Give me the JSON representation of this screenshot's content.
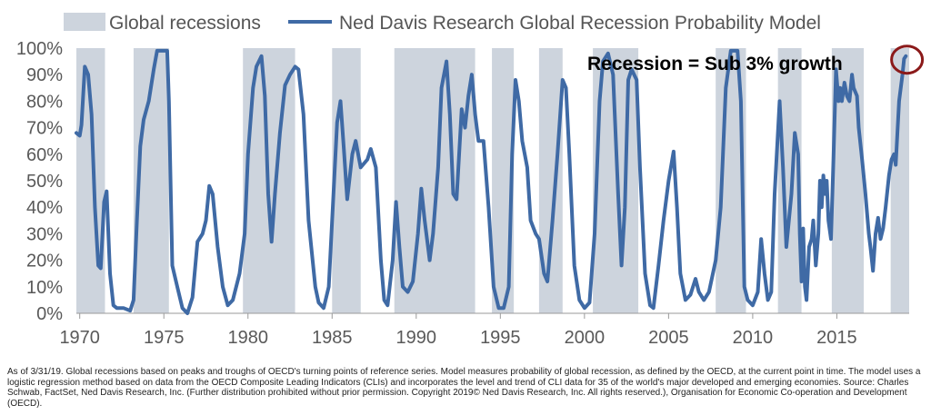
{
  "chart_data": {
    "type": "area",
    "legend": {
      "position": "top",
      "recession_label": "Global recessions",
      "series_label": "Ned Davis Research Global Recession Probability Model"
    },
    "x_ticks": [
      "1970",
      "1975",
      "1980",
      "1985",
      "1990",
      "1995",
      "2000",
      "2005",
      "2010",
      "2015"
    ],
    "y_ticks": [
      "0%",
      "10%",
      "20%",
      "30%",
      "40%",
      "50%",
      "60%",
      "70%",
      "80%",
      "90%",
      "100%"
    ],
    "xlim": [
      1969.8,
      2019.3
    ],
    "ylim": [
      0,
      100
    ],
    "grid": false,
    "colors": {
      "recession": "#cdd4dd",
      "line": "#3f6aa5",
      "annotation_circle": "#8b1a1a"
    },
    "recessions": [
      [
        1969.8,
        1971.5
      ],
      [
        1973.2,
        1975.3
      ],
      [
        1979.7,
        1982.8
      ],
      [
        1985.0,
        1986.7
      ],
      [
        1988.7,
        1993.5
      ],
      [
        1994.5,
        1995.8
      ],
      [
        1997.3,
        1998.7
      ],
      [
        2000.5,
        2003.2
      ],
      [
        2007.8,
        2009.6
      ],
      [
        2011.5,
        2012.9
      ],
      [
        2014.7,
        2016.6
      ],
      [
        2018.2,
        2019.3
      ]
    ],
    "series": [
      {
        "name": "Ned Davis Research Global Recession Probability Model",
        "points": [
          [
            1969.8,
            68
          ],
          [
            1970.0,
            67
          ],
          [
            1970.1,
            71
          ],
          [
            1970.3,
            93
          ],
          [
            1970.5,
            90
          ],
          [
            1970.7,
            75
          ],
          [
            1970.9,
            40
          ],
          [
            1971.1,
            18
          ],
          [
            1971.25,
            17
          ],
          [
            1971.45,
            42
          ],
          [
            1971.6,
            46
          ],
          [
            1971.8,
            15
          ],
          [
            1972.0,
            3
          ],
          [
            1972.2,
            2
          ],
          [
            1972.6,
            2
          ],
          [
            1973.0,
            1
          ],
          [
            1973.2,
            5
          ],
          [
            1973.4,
            35
          ],
          [
            1973.6,
            63
          ],
          [
            1973.8,
            73
          ],
          [
            1974.1,
            80
          ],
          [
            1974.4,
            92
          ],
          [
            1974.6,
            99
          ],
          [
            1975.2,
            99
          ],
          [
            1975.3,
            80
          ],
          [
            1975.5,
            18
          ],
          [
            1975.8,
            10
          ],
          [
            1976.1,
            2
          ],
          [
            1976.4,
            0
          ],
          [
            1976.7,
            6
          ],
          [
            1977.0,
            27
          ],
          [
            1977.3,
            30
          ],
          [
            1977.5,
            35
          ],
          [
            1977.7,
            48
          ],
          [
            1977.9,
            45
          ],
          [
            1978.2,
            25
          ],
          [
            1978.5,
            10
          ],
          [
            1978.8,
            3
          ],
          [
            1979.1,
            5
          ],
          [
            1979.5,
            15
          ],
          [
            1979.8,
            30
          ],
          [
            1980.0,
            60
          ],
          [
            1980.3,
            85
          ],
          [
            1980.5,
            93
          ],
          [
            1980.8,
            97
          ],
          [
            1981.0,
            82
          ],
          [
            1981.2,
            45
          ],
          [
            1981.4,
            27
          ],
          [
            1981.6,
            45
          ],
          [
            1981.9,
            68
          ],
          [
            1982.2,
            86
          ],
          [
            1982.5,
            90
          ],
          [
            1982.8,
            93
          ],
          [
            1983.0,
            92
          ],
          [
            1983.3,
            75
          ],
          [
            1983.6,
            35
          ],
          [
            1984.0,
            10
          ],
          [
            1984.2,
            4
          ],
          [
            1984.5,
            2
          ],
          [
            1984.8,
            10
          ],
          [
            1985.0,
            35
          ],
          [
            1985.3,
            72
          ],
          [
            1985.5,
            80
          ],
          [
            1985.7,
            62
          ],
          [
            1985.9,
            43
          ],
          [
            1986.2,
            60
          ],
          [
            1986.4,
            65
          ],
          [
            1986.7,
            55
          ],
          [
            1987.1,
            58
          ],
          [
            1987.3,
            62
          ],
          [
            1987.6,
            55
          ],
          [
            1987.9,
            20
          ],
          [
            1988.1,
            5
          ],
          [
            1988.3,
            3
          ],
          [
            1988.6,
            20
          ],
          [
            1988.8,
            42
          ],
          [
            1989.0,
            25
          ],
          [
            1989.2,
            10
          ],
          [
            1989.5,
            8
          ],
          [
            1989.8,
            12
          ],
          [
            1990.1,
            30
          ],
          [
            1990.3,
            47
          ],
          [
            1990.5,
            35
          ],
          [
            1990.8,
            20
          ],
          [
            1991.0,
            30
          ],
          [
            1991.3,
            55
          ],
          [
            1991.5,
            85
          ],
          [
            1991.8,
            95
          ],
          [
            1992.0,
            75
          ],
          [
            1992.2,
            45
          ],
          [
            1992.4,
            43
          ],
          [
            1992.7,
            77
          ],
          [
            1992.9,
            70
          ],
          [
            1993.1,
            82
          ],
          [
            1993.3,
            90
          ],
          [
            1993.5,
            75
          ],
          [
            1993.7,
            65
          ],
          [
            1994.0,
            65
          ],
          [
            1994.3,
            40
          ],
          [
            1994.6,
            10
          ],
          [
            1994.9,
            2
          ],
          [
            1995.2,
            2
          ],
          [
            1995.5,
            10
          ],
          [
            1995.7,
            60
          ],
          [
            1995.9,
            88
          ],
          [
            1996.1,
            80
          ],
          [
            1996.3,
            65
          ],
          [
            1996.6,
            55
          ],
          [
            1996.8,
            35
          ],
          [
            1997.1,
            30
          ],
          [
            1997.3,
            28
          ],
          [
            1997.6,
            15
          ],
          [
            1997.8,
            12
          ],
          [
            1998.1,
            35
          ],
          [
            1998.4,
            60
          ],
          [
            1998.7,
            88
          ],
          [
            1998.9,
            85
          ],
          [
            1999.1,
            60
          ],
          [
            1999.4,
            18
          ],
          [
            1999.7,
            5
          ],
          [
            2000.0,
            2
          ],
          [
            2000.3,
            4
          ],
          [
            2000.6,
            30
          ],
          [
            2000.9,
            80
          ],
          [
            2001.1,
            95
          ],
          [
            2001.4,
            98
          ],
          [
            2001.7,
            90
          ],
          [
            2002.0,
            45
          ],
          [
            2002.2,
            18
          ],
          [
            2002.4,
            40
          ],
          [
            2002.6,
            88
          ],
          [
            2002.8,
            92
          ],
          [
            2003.1,
            88
          ],
          [
            2003.3,
            55
          ],
          [
            2003.6,
            15
          ],
          [
            2003.9,
            3
          ],
          [
            2004.1,
            2
          ],
          [
            2004.4,
            18
          ],
          [
            2004.7,
            35
          ],
          [
            2005.0,
            50
          ],
          [
            2005.3,
            61
          ],
          [
            2005.5,
            40
          ],
          [
            2005.7,
            15
          ],
          [
            2006.0,
            5
          ],
          [
            2006.3,
            7
          ],
          [
            2006.6,
            13
          ],
          [
            2006.8,
            8
          ],
          [
            2007.1,
            5
          ],
          [
            2007.4,
            8
          ],
          [
            2007.8,
            20
          ],
          [
            2008.1,
            40
          ],
          [
            2008.4,
            85
          ],
          [
            2008.7,
            99
          ],
          [
            2009.1,
            99
          ],
          [
            2009.3,
            80
          ],
          [
            2009.5,
            10
          ],
          [
            2009.7,
            5
          ],
          [
            2010.0,
            3
          ],
          [
            2010.3,
            8
          ],
          [
            2010.5,
            28
          ],
          [
            2010.7,
            15
          ],
          [
            2010.9,
            5
          ],
          [
            2011.1,
            8
          ],
          [
            2011.3,
            45
          ],
          [
            2011.6,
            80
          ],
          [
            2011.8,
            55
          ],
          [
            2012.0,
            25
          ],
          [
            2012.3,
            45
          ],
          [
            2012.5,
            68
          ],
          [
            2012.7,
            60
          ],
          [
            2012.8,
            30
          ],
          [
            2012.9,
            12
          ],
          [
            2013.0,
            32
          ],
          [
            2013.1,
            10
          ],
          [
            2013.2,
            5
          ],
          [
            2013.35,
            25
          ],
          [
            2013.5,
            28
          ],
          [
            2013.6,
            35
          ],
          [
            2013.75,
            18
          ],
          [
            2013.9,
            30
          ],
          [
            2014.0,
            50
          ],
          [
            2014.1,
            40
          ],
          [
            2014.2,
            52
          ],
          [
            2014.3,
            45
          ],
          [
            2014.4,
            50
          ],
          [
            2014.5,
            35
          ],
          [
            2014.65,
            28
          ],
          [
            2014.8,
            58
          ],
          [
            2014.95,
            92
          ],
          [
            2015.1,
            80
          ],
          [
            2015.2,
            85
          ],
          [
            2015.3,
            80
          ],
          [
            2015.45,
            87
          ],
          [
            2015.6,
            82
          ],
          [
            2015.75,
            80
          ],
          [
            2015.9,
            90
          ],
          [
            2016.0,
            85
          ],
          [
            2016.2,
            82
          ],
          [
            2016.3,
            70
          ],
          [
            2016.5,
            58
          ],
          [
            2016.7,
            45
          ],
          [
            2016.9,
            30
          ],
          [
            2017.0,
            25
          ],
          [
            2017.15,
            16
          ],
          [
            2017.3,
            30
          ],
          [
            2017.45,
            36
          ],
          [
            2017.6,
            28
          ],
          [
            2017.75,
            32
          ],
          [
            2017.9,
            40
          ],
          [
            2018.1,
            52
          ],
          [
            2018.25,
            58
          ],
          [
            2018.4,
            60
          ],
          [
            2018.5,
            56
          ],
          [
            2018.7,
            80
          ],
          [
            2018.9,
            90
          ],
          [
            2019.0,
            96
          ],
          [
            2019.1,
            97
          ]
        ]
      }
    ]
  },
  "annotation": {
    "text": "Recession  = Sub 3% growth",
    "target": [
      2018.9,
      96
    ]
  },
  "footnote": "As of 3/31/19. Global recessions based on peaks and troughs of  OECD's turning points of reference series. Model measures probability of global recession, as defined by the OECD, at the current point in time. The model uses a logistic regression method based on data from the OECD Composite Leading Indicators (CLIs) and  incorporates the level and trend of CLI data for 35 of the world's major developed and emerging economies. Source:  Charles Schwab, FactSet, Ned Davis Research, Inc. (Further distribution prohibited without prior permission. Copyright 2019© Ned Davis Research, Inc. All rights reserved.), Organisation for Economic Co-operation and Development (OECD)."
}
